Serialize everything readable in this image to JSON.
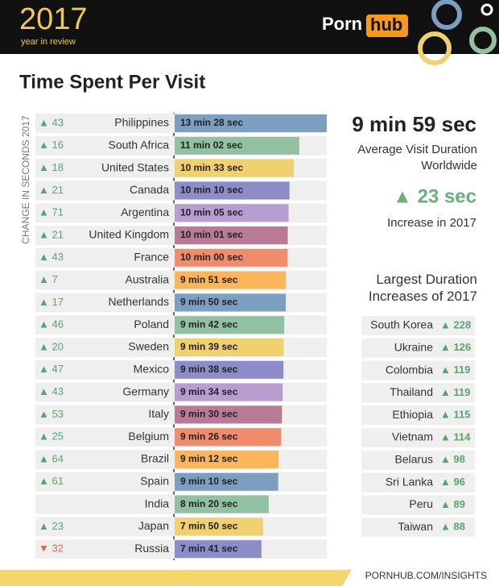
{
  "header": {
    "year": "2017",
    "subtitle": "year in review",
    "brand_left": "Porn",
    "brand_right": "hub"
  },
  "title": "Time Spent Per Visit",
  "summary": {
    "average": "9 min 59 sec",
    "average_label": "Average Visit Duration Worldwide",
    "increase": "▲ 23 sec",
    "increase_label": "Increase in 2017"
  },
  "footer": "PORNHUB.COM/INSIGHTS",
  "chart_data": [
    {
      "type": "hbar",
      "change_axis_label": "CHANGE IN SECONDS 2017",
      "categories": [
        "Philippines",
        "South Africa",
        "United States",
        "Canada",
        "Argentina",
        "United Kingdom",
        "France",
        "Australia",
        "Netherlands",
        "Poland",
        "Sweden",
        "Mexico",
        "Germany",
        "Italy",
        "Belgium",
        "Brazil",
        "Spain",
        "India",
        "Japan",
        "Russia"
      ],
      "values": [
        808,
        662,
        633,
        610,
        605,
        601,
        600,
        591,
        590,
        582,
        579,
        578,
        574,
        570,
        566,
        552,
        550,
        500,
        470,
        461
      ],
      "value_labels": [
        "13 min 28 sec",
        "11 min 02 sec",
        "10 min 33 sec",
        "10 min 10 sec",
        "10 min 05 sec",
        "10 min 01 sec",
        "10 min 00 sec",
        "9 min 51 sec",
        "9 min 50 sec",
        "9 min 42 sec",
        "9 min 39 sec",
        "9 min 38 sec",
        "9 min 34 sec",
        "9 min 30 sec",
        "9 min 26 sec",
        "9 min 12 sec",
        "9 min 10 sec",
        "8 min 20 sec",
        "7 min 50 sec",
        "7 min 41 sec"
      ],
      "change_values": [
        43,
        16,
        18,
        21,
        71,
        21,
        43,
        7,
        17,
        46,
        20,
        47,
        43,
        53,
        25,
        64,
        61,
        null,
        23,
        -32
      ],
      "change_labels": [
        "▲ 43",
        "▲ 16",
        "▲ 18",
        "▲ 21",
        "▲ 71",
        "▲ 21",
        "▲ 43",
        "▲ 7",
        "▲ 17",
        "▲ 46",
        "▲ 20",
        "▲ 47",
        "▲ 43",
        "▲ 53",
        "▲ 25",
        "▲ 64",
        "▲ 61",
        null,
        "▲ 23",
        "▼ 32"
      ],
      "colors": [
        "#7c9ec0",
        "#92c1a2",
        "#f1d06f",
        "#8b8cc8",
        "#b89dd1",
        "#b97a97",
        "#f08b6b",
        "#fbb55b",
        "#7c9ec0",
        "#92c1a2",
        "#f1d06f",
        "#8b8cc8",
        "#b89dd1",
        "#b97a97",
        "#f08b6b",
        "#fbb55b",
        "#7c9ec0",
        "#92c1a2",
        "#f1d06f",
        "#8b8cc8"
      ]
    },
    {
      "type": "list",
      "title": "Largest Duration Increases of 2017",
      "categories": [
        "South Korea",
        "Ukraine",
        "Colombia",
        "Thailand",
        "Ethiopia",
        "Vietnam",
        "Belarus",
        "Sri Lanka",
        "Peru",
        "Taiwan"
      ],
      "values": [
        228,
        126,
        119,
        119,
        115,
        114,
        98,
        96,
        89,
        88
      ],
      "value_labels": [
        "▲ 228",
        "▲ 126",
        "▲ 119",
        "▲ 119",
        "▲ 115",
        "▲ 114",
        "▲ 98",
        "▲ 96",
        "▲ 89",
        "▲ 88"
      ]
    }
  ]
}
